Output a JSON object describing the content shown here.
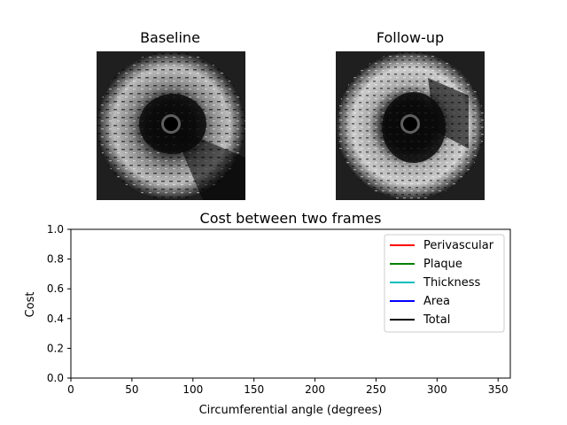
{
  "images": {
    "baseline": {
      "title": "Baseline",
      "description_icon": "ivus-cross-section"
    },
    "followup": {
      "title": "Follow-up",
      "description_icon": "ivus-cross-section"
    }
  },
  "chart_data": {
    "type": "line",
    "title": "Cost between two frames",
    "xlabel": "Circumferential angle (degrees)",
    "ylabel": "Cost",
    "xlim": [
      0,
      360
    ],
    "ylim": [
      0,
      1.0
    ],
    "xticks": [
      0,
      50,
      100,
      150,
      200,
      250,
      300,
      350
    ],
    "xtick_labels": [
      "0",
      "50",
      "100",
      "150",
      "200",
      "250",
      "300",
      "350"
    ],
    "yticks": [
      0.0,
      0.2,
      0.4,
      0.6,
      0.8,
      1.0
    ],
    "ytick_labels": [
      "0.0",
      "0.2",
      "0.4",
      "0.6",
      "0.8",
      "1.0"
    ],
    "grid": false,
    "legend_position": "top-right",
    "series": [
      {
        "name": "Perivascular",
        "color": "#ff0000",
        "values": []
      },
      {
        "name": "Plaque",
        "color": "#008000",
        "values": []
      },
      {
        "name": "Thickness",
        "color": "#00bfbf",
        "values": []
      },
      {
        "name": "Area",
        "color": "#0000ff",
        "values": []
      },
      {
        "name": "Total",
        "color": "#000000",
        "values": []
      }
    ]
  }
}
